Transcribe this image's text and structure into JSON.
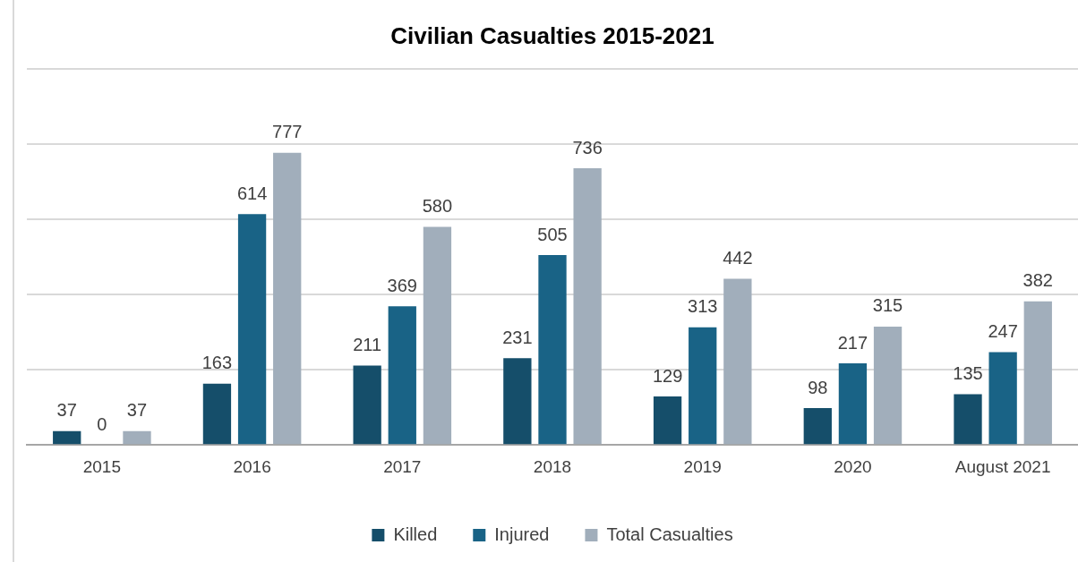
{
  "chart_data": {
    "type": "bar",
    "title": "Civilian Casualties 2015-2021",
    "categories": [
      "2015",
      "2016",
      "2017",
      "2018",
      "2019",
      "2020",
      "August 2021"
    ],
    "series": [
      {
        "name": "Killed",
        "color": "#154e6a",
        "values": [
          37,
          163,
          211,
          231,
          129,
          98,
          135
        ]
      },
      {
        "name": "Injured",
        "color": "#196386",
        "values": [
          0,
          614,
          369,
          505,
          313,
          217,
          247
        ]
      },
      {
        "name": "Total Casualties",
        "color": "#a1aebb",
        "values": [
          37,
          777,
          580,
          736,
          442,
          315,
          382
        ]
      }
    ],
    "ylim": [
      0,
      1000
    ],
    "yticks": [
      {
        "value": 0,
        "label": null
      },
      {
        "value": 200,
        "label": null
      },
      {
        "value": 400,
        "label": null
      },
      {
        "value": 600,
        "label": null
      },
      {
        "value": 800,
        "label": null
      },
      {
        "value": 1000,
        "label": null
      }
    ],
    "grid": "y",
    "tick_labels": "x",
    "data_labels": true,
    "legend": "bottom"
  }
}
